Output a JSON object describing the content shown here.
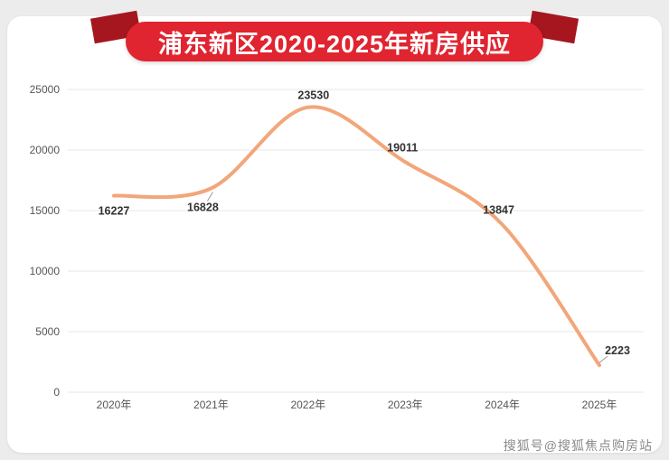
{
  "page": {
    "title": "浦东新区2020-2025年新房供应",
    "watermark": "搜狐号@搜狐焦点购房站"
  },
  "chart_data": {
    "type": "line",
    "title": "浦东新区2020-2025年新房供应",
    "categories": [
      "2020年",
      "2021年",
      "2022年",
      "2023年",
      "2024年",
      "2025年"
    ],
    "values": [
      16227,
      16828,
      23530,
      19011,
      13847,
      2223
    ],
    "xlabel": "",
    "ylabel": "",
    "ylim": [
      0,
      25000
    ],
    "ytick_step": 5000,
    "yticks": [
      "0",
      "5000",
      "10000",
      "15000",
      "20000",
      "25000"
    ],
    "grid": true,
    "legend": "none",
    "line_color": "#F2A679",
    "grid_color": "#e7e7e7",
    "axis_text_color": "#555555",
    "label_color": "#333333"
  },
  "colors": {
    "banner_red": "#E02430",
    "banner_fold_red": "#A5161F",
    "card_background": "#FFFFFF",
    "page_background": "#ECECEC"
  }
}
